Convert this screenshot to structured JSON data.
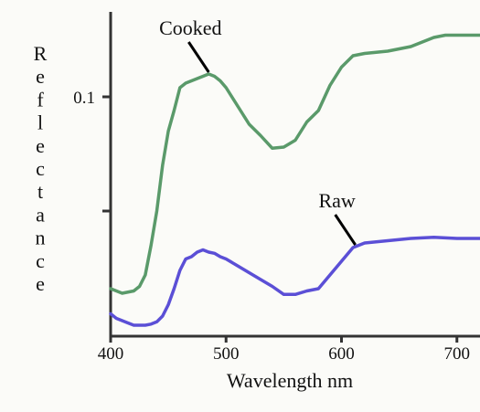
{
  "chart_data": {
    "type": "line",
    "xlabel": "Wavelength nm",
    "ylabel": "Reflectance",
    "x_ticks": [
      400,
      500,
      600,
      700
    ],
    "y_ticks": [
      {
        "value": 0.1,
        "label": "0.1"
      },
      {
        "value": 0.05,
        "label": ""
      }
    ],
    "xlim": [
      400,
      720
    ],
    "ylim": [
      0,
      0.146
    ],
    "grid": false,
    "series": [
      {
        "name": "Cooked",
        "color": "#5a9a6a",
        "x": [
          400,
          410,
          420,
          425,
          430,
          435,
          440,
          445,
          450,
          455,
          460,
          465,
          470,
          475,
          480,
          485,
          490,
          495,
          500,
          505,
          510,
          515,
          520,
          530,
          540,
          550,
          560,
          570,
          580,
          590,
          600,
          610,
          620,
          640,
          660,
          680,
          690,
          700,
          710,
          720
        ],
        "y": [
          0.016,
          0.014,
          0.015,
          0.017,
          0.022,
          0.035,
          0.05,
          0.07,
          0.085,
          0.094,
          0.104,
          0.106,
          0.107,
          0.108,
          0.109,
          0.11,
          0.109,
          0.107,
          0.104,
          0.1,
          0.096,
          0.092,
          0.088,
          0.083,
          0.0775,
          0.078,
          0.081,
          0.089,
          0.094,
          0.105,
          0.113,
          0.118,
          0.119,
          0.12,
          0.122,
          0.126,
          0.127,
          0.127,
          0.127,
          0.127
        ]
      },
      {
        "name": "Raw",
        "color": "#5b4fd6",
        "x": [
          400,
          405,
          410,
          415,
          420,
          425,
          430,
          435,
          440,
          445,
          450,
          455,
          460,
          465,
          470,
          475,
          480,
          485,
          490,
          495,
          500,
          510,
          520,
          530,
          540,
          550,
          560,
          570,
          580,
          590,
          600,
          605,
          610,
          620,
          640,
          660,
          680,
          700,
          720
        ],
        "y": [
          0.005,
          0.003,
          0.002,
          0.001,
          0.0,
          0.0,
          0.0,
          0.0005,
          0.0015,
          0.004,
          0.009,
          0.016,
          0.024,
          0.029,
          0.03,
          0.032,
          0.033,
          0.032,
          0.0315,
          0.03,
          0.029,
          0.026,
          0.023,
          0.02,
          0.017,
          0.0135,
          0.0135,
          0.015,
          0.016,
          0.022,
          0.028,
          0.031,
          0.034,
          0.036,
          0.037,
          0.038,
          0.0385,
          0.038,
          0.038
        ]
      }
    ],
    "annotations": [
      {
        "text": "Cooked",
        "series": "Cooked",
        "at_x": 485
      },
      {
        "text": "Raw",
        "series": "Raw",
        "at_x": 612
      }
    ]
  }
}
